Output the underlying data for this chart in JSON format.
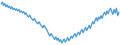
{
  "values": [
    3.2,
    3.5,
    3.0,
    3.3,
    2.8,
    3.1,
    2.7,
    2.9,
    2.5,
    2.8,
    2.4,
    2.6,
    2.3,
    2.5,
    2.2,
    2.4,
    2.0,
    2.2,
    1.9,
    2.1,
    1.7,
    1.9,
    1.5,
    1.3,
    1.6,
    1.2,
    1.0,
    0.8,
    1.1,
    0.7,
    0.5,
    0.3,
    0.6,
    0.2,
    0.0,
    -0.3,
    0.1,
    -0.2,
    -0.5,
    -0.8,
    -1.2,
    -1.5,
    -1.1,
    -1.4,
    -1.7,
    -2.0,
    -1.6,
    -2.1,
    -1.8,
    -2.3,
    -2.0,
    -2.5,
    -2.2,
    -1.9,
    -2.4,
    -2.1,
    -1.7,
    -2.2,
    -1.9,
    -1.5,
    -1.8,
    -1.4,
    -1.1,
    -1.6,
    -1.2,
    -0.9,
    -1.3,
    -0.8,
    -0.5,
    -1.0,
    -0.6,
    -0.2,
    -0.7,
    -0.3,
    0.1,
    -0.4,
    0.2,
    0.6,
    0.3,
    0.8,
    1.2,
    0.7,
    1.3,
    1.0,
    1.5,
    1.1,
    1.7,
    2.0,
    1.6,
    2.2,
    1.8,
    2.3,
    2.6,
    2.1,
    1.7,
    2.4,
    1.9,
    2.6,
    1.5,
    2.0
  ],
  "line_color": "#4499dd",
  "background_color": "#ffffff",
  "linewidth": 0.9
}
